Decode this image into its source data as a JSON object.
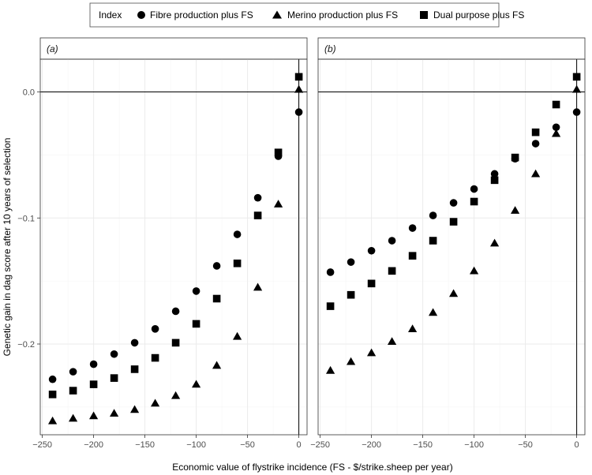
{
  "chart_data": {
    "type": "scatter",
    "legend": {
      "title": "Index",
      "placement": "top",
      "entries": [
        {
          "name": "Fibre production plus FS",
          "marker": "circle"
        },
        {
          "name": "Merino production plus FS",
          "marker": "triangle"
        },
        {
          "name": "Dual purpose plus FS",
          "marker": "square"
        }
      ]
    },
    "xlabel": "Economic value of flystrike incidence (FS - $/strike.sheep per year)",
    "ylabel": "Genetic gain in dag score after 10 years of selection",
    "xlim": [
      -252,
      8
    ],
    "ylim": [
      -0.272,
      0.026
    ],
    "x_ticks": [
      -250,
      -200,
      -150,
      -100,
      -50,
      0
    ],
    "y_ticks": [
      -0.2,
      -0.1,
      0.0
    ],
    "x_tick_labels": [
      "−250",
      "−200",
      "−150",
      "−100",
      "−50",
      "0"
    ],
    "y_tick_labels": [
      "−0.2",
      "−0.1",
      "0.0"
    ],
    "grid": true,
    "colors": {
      "marker": "#000000",
      "panel_border": "#333333",
      "grid_major": "#ebebeb",
      "grid_minor": "#f5f5f5",
      "strip_fill": "#ffffff"
    },
    "panels": [
      {
        "label": "(a)",
        "x": [
          -240,
          -220,
          -200,
          -180,
          -160,
          -140,
          -120,
          -100,
          -80,
          -60,
          -40,
          -20,
          0
        ],
        "series": [
          {
            "name": "Fibre production plus FS",
            "values": [
              -0.228,
              -0.222,
              -0.216,
              -0.208,
              -0.199,
              -0.188,
              -0.174,
              -0.158,
              -0.138,
              -0.113,
              -0.084,
              -0.051,
              -0.016
            ]
          },
          {
            "name": "Merino production plus FS",
            "values": [
              -0.261,
              -0.259,
              -0.257,
              -0.255,
              -0.252,
              -0.247,
              -0.241,
              -0.232,
              -0.217,
              -0.194,
              -0.155,
              -0.089,
              0.002
            ]
          },
          {
            "name": "Dual purpose plus FS",
            "values": [
              -0.24,
              -0.237,
              -0.232,
              -0.227,
              -0.22,
              -0.211,
              -0.199,
              -0.184,
              -0.164,
              -0.136,
              -0.098,
              -0.048,
              0.012
            ]
          }
        ]
      },
      {
        "label": "(b)",
        "x": [
          -240,
          -220,
          -200,
          -180,
          -160,
          -140,
          -120,
          -100,
          -80,
          -60,
          -40,
          -20,
          0
        ],
        "series": [
          {
            "name": "Fibre production plus FS",
            "values": [
              -0.143,
              -0.135,
              -0.126,
              -0.118,
              -0.108,
              -0.098,
              -0.088,
              -0.077,
              -0.065,
              -0.053,
              -0.041,
              -0.028,
              -0.016
            ]
          },
          {
            "name": "Merino production plus FS",
            "values": [
              -0.221,
              -0.214,
              -0.207,
              -0.198,
              -0.188,
              -0.175,
              -0.16,
              -0.142,
              -0.12,
              -0.094,
              -0.065,
              -0.033,
              0.002
            ]
          },
          {
            "name": "Dual purpose plus FS",
            "values": [
              -0.17,
              -0.161,
              -0.152,
              -0.142,
              -0.13,
              -0.118,
              -0.103,
              -0.087,
              -0.07,
              -0.052,
              -0.032,
              -0.01,
              0.012
            ]
          }
        ]
      }
    ]
  }
}
